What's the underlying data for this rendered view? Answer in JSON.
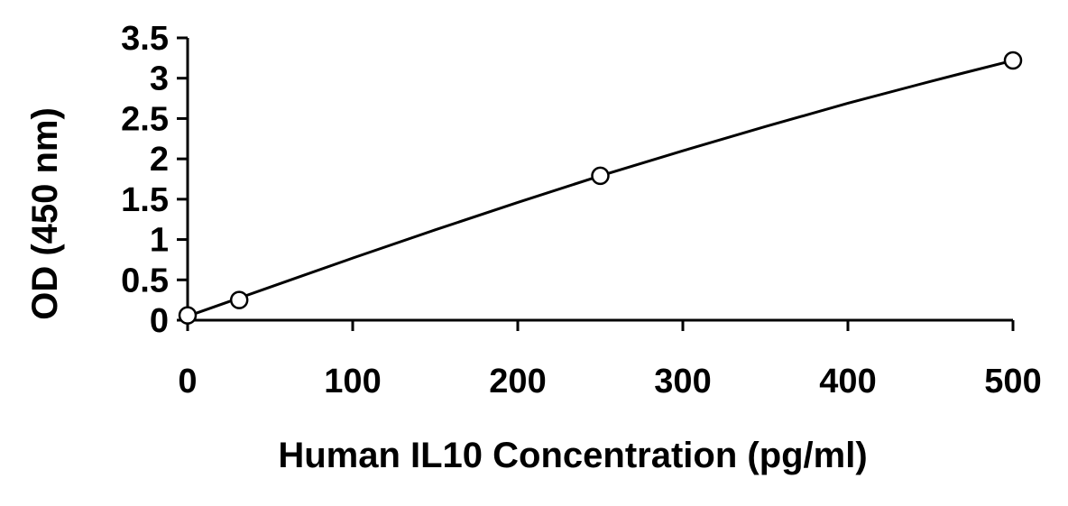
{
  "chart_data": {
    "type": "scatter",
    "title": "",
    "xlabel": "Human IL10 Concentration (pg/ml)",
    "ylabel": "OD (450 nm)",
    "xlim": [
      0,
      500
    ],
    "ylim": [
      0,
      3.5
    ],
    "x_ticks": [
      "0",
      "100",
      "200",
      "300",
      "400",
      "500"
    ],
    "y_ticks": [
      "0",
      "0.5",
      "1",
      "1.5",
      "2",
      "2.5",
      "3",
      "3.5"
    ],
    "grid": false,
    "legend": "none",
    "series": [
      {
        "marker": "open-circle",
        "color": "#000000",
        "points": [
          {
            "x": 0,
            "y": 0.06
          },
          {
            "x": 31.25,
            "y": 0.25
          },
          {
            "x": 250,
            "y": 1.79
          },
          {
            "x": 500,
            "y": 3.22
          }
        ],
        "fit_curve": [
          {
            "x": 0,
            "y": 0.05
          },
          {
            "x": 50,
            "y": 0.41
          },
          {
            "x": 100,
            "y": 0.77
          },
          {
            "x": 150,
            "y": 1.12
          },
          {
            "x": 200,
            "y": 1.46
          },
          {
            "x": 250,
            "y": 1.79
          },
          {
            "x": 300,
            "y": 2.1
          },
          {
            "x": 350,
            "y": 2.4
          },
          {
            "x": 400,
            "y": 2.69
          },
          {
            "x": 450,
            "y": 2.96
          },
          {
            "x": 500,
            "y": 3.22
          }
        ]
      }
    ]
  }
}
